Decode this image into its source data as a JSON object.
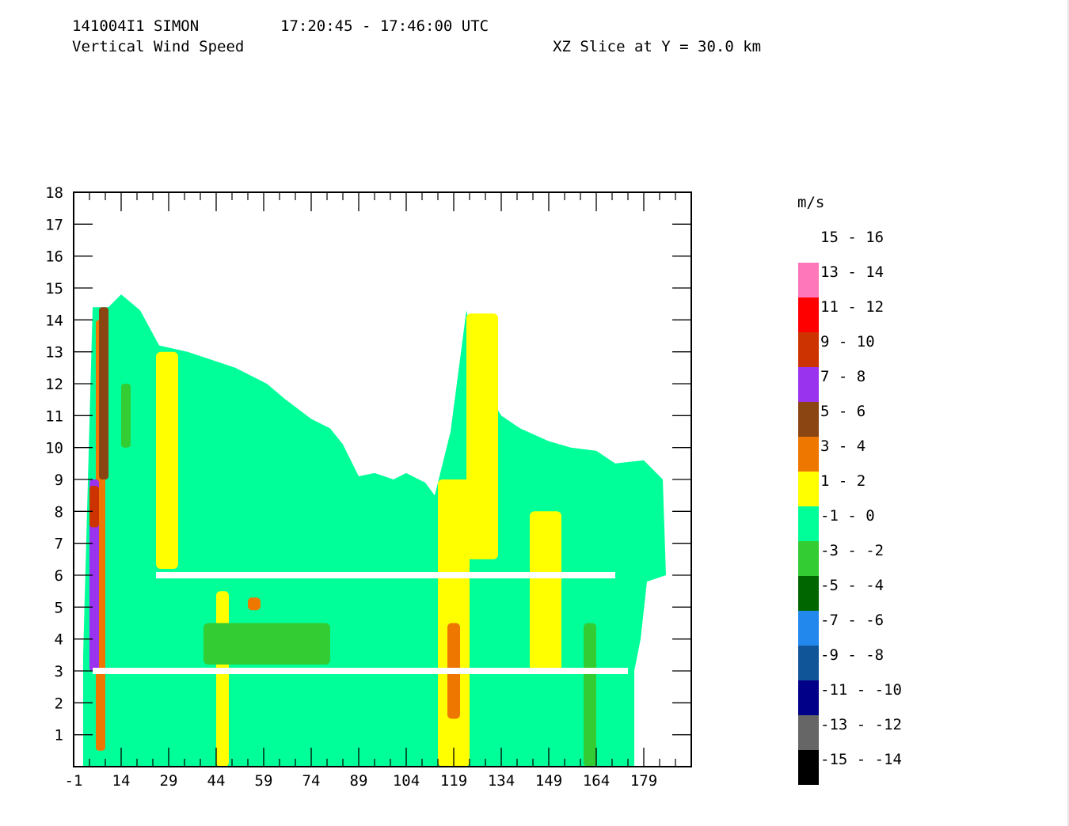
{
  "header": {
    "line1_left": "141004I1 SIMON",
    "line1_time": "17:20:45 - 17:46:00 UTC",
    "line2_left": "Vertical Wind Speed",
    "line2_right": "XZ Slice at Y = 30.0 km"
  },
  "chart_data": {
    "type": "heatmap",
    "title": "Vertical Wind Speed",
    "xlim": [
      -1,
      194
    ],
    "ylim": [
      0,
      18
    ],
    "x_ticks": [
      "-1",
      "14",
      "29",
      "44",
      "59",
      "74",
      "89",
      "104",
      "119",
      "134",
      "149",
      "164",
      "179"
    ],
    "x_tick_values": [
      -1,
      14,
      29,
      44,
      59,
      74,
      89,
      104,
      119,
      134,
      149,
      164,
      179
    ],
    "y_ticks": [
      "1",
      "2",
      "3",
      "4",
      "5",
      "6",
      "7",
      "8",
      "9",
      "10",
      "11",
      "12",
      "13",
      "14",
      "15",
      "16",
      "17",
      "18"
    ],
    "y_tick_values": [
      1,
      2,
      3,
      4,
      5,
      6,
      7,
      8,
      9,
      10,
      11,
      12,
      13,
      14,
      15,
      16,
      17,
      18
    ],
    "legend": {
      "title": "m/s",
      "items": [
        {
          "label": "15 - 16",
          "color": "#ffffff"
        },
        {
          "label": "13 - 14",
          "color": "#ff77bb"
        },
        {
          "label": "11 - 12",
          "color": "#ff0000"
        },
        {
          "label": "9 - 10",
          "color": "#cc3300"
        },
        {
          "label": "7 - 8",
          "color": "#9933ee"
        },
        {
          "label": "5 - 6",
          "color": "#8b4513"
        },
        {
          "label": "3 - 4",
          "color": "#ee7700"
        },
        {
          "label": "1 - 2",
          "color": "#ffff00"
        },
        {
          "label": "-1 - 0",
          "color": "#00ff99"
        },
        {
          "label": "-3 - -2",
          "color": "#33cc33"
        },
        {
          "label": "-5 - -4",
          "color": "#006600"
        },
        {
          "label": "-7 - -6",
          "color": "#2288ee"
        },
        {
          "label": "-9 - -8",
          "color": "#115599"
        },
        {
          "label": "-11 - -10",
          "color": "#000088"
        },
        {
          "label": "-13 - -12",
          "color": "#666666"
        },
        {
          "label": "-15 - -14",
          "color": "#000000"
        }
      ]
    },
    "echo_top_profile": [
      [
        2,
        3.5
      ],
      [
        5,
        14.4
      ],
      [
        10,
        14.4
      ],
      [
        14,
        14.8
      ],
      [
        20,
        14.3
      ],
      [
        26,
        13.2
      ],
      [
        35,
        13.0
      ],
      [
        50,
        12.5
      ],
      [
        60,
        12.0
      ],
      [
        66,
        11.5
      ],
      [
        74,
        10.9
      ],
      [
        80,
        10.6
      ],
      [
        84,
        10.1
      ],
      [
        89,
        9.1
      ],
      [
        94,
        9.2
      ],
      [
        100,
        9.0
      ],
      [
        104,
        9.2
      ],
      [
        110,
        8.9
      ],
      [
        113,
        8.5
      ],
      [
        118,
        10.5
      ],
      [
        123,
        14.3
      ],
      [
        128,
        12.0
      ],
      [
        134,
        11.0
      ],
      [
        140,
        10.6
      ],
      [
        149,
        10.2
      ],
      [
        156,
        10.0
      ],
      [
        164,
        9.9
      ],
      [
        170,
        9.5
      ],
      [
        179,
        9.6
      ],
      [
        185,
        9.0
      ],
      [
        186,
        6.0
      ],
      [
        180,
        5.8
      ],
      [
        178,
        4.0
      ],
      [
        176,
        3.0
      ]
    ],
    "gaps": [
      {
        "z": 3.0,
        "x_from": 5,
        "x_to": 174
      },
      {
        "z": 6.0,
        "x_from": 25,
        "x_to": 170
      }
    ],
    "features": [
      {
        "range": "1 - 2",
        "x": [
          25,
          32
        ],
        "z": [
          6.2,
          13.0
        ]
      },
      {
        "range": "1 - 2",
        "x": [
          44,
          48
        ],
        "z": [
          0,
          5.5
        ]
      },
      {
        "range": "1 - 2",
        "x": [
          114,
          124
        ],
        "z": [
          0,
          9.0
        ]
      },
      {
        "range": "1 - 2",
        "x": [
          123,
          133
        ],
        "z": [
          6.5,
          14.2
        ]
      },
      {
        "range": "1 - 2",
        "x": [
          143,
          153
        ],
        "z": [
          3.0,
          8.0
        ]
      },
      {
        "range": "3 - 4",
        "x": [
          117,
          121
        ],
        "z": [
          1.5,
          4.5
        ]
      },
      {
        "range": "3 - 4",
        "x": [
          54,
          58
        ],
        "z": [
          4.9,
          5.3
        ]
      },
      {
        "range": "3 - 4",
        "x": [
          6,
          9
        ],
        "z": [
          0.5,
          14.0
        ]
      },
      {
        "range": "5 - 6",
        "x": [
          7,
          10
        ],
        "z": [
          9.0,
          14.4
        ]
      },
      {
        "range": "7 - 8",
        "x": [
          4,
          7
        ],
        "z": [
          3.0,
          9.0
        ]
      },
      {
        "range": "9 - 10",
        "x": [
          4,
          7
        ],
        "z": [
          7.5,
          8.8
        ]
      },
      {
        "range": "-3 - -2",
        "x": [
          40,
          80
        ],
        "z": [
          3.2,
          4.5
        ]
      },
      {
        "range": "-3 - -2",
        "x": [
          160,
          164
        ],
        "z": [
          0,
          4.5
        ]
      },
      {
        "range": "-3 - -2",
        "x": [
          14,
          17
        ],
        "z": [
          10.0,
          12.0
        ]
      }
    ]
  }
}
